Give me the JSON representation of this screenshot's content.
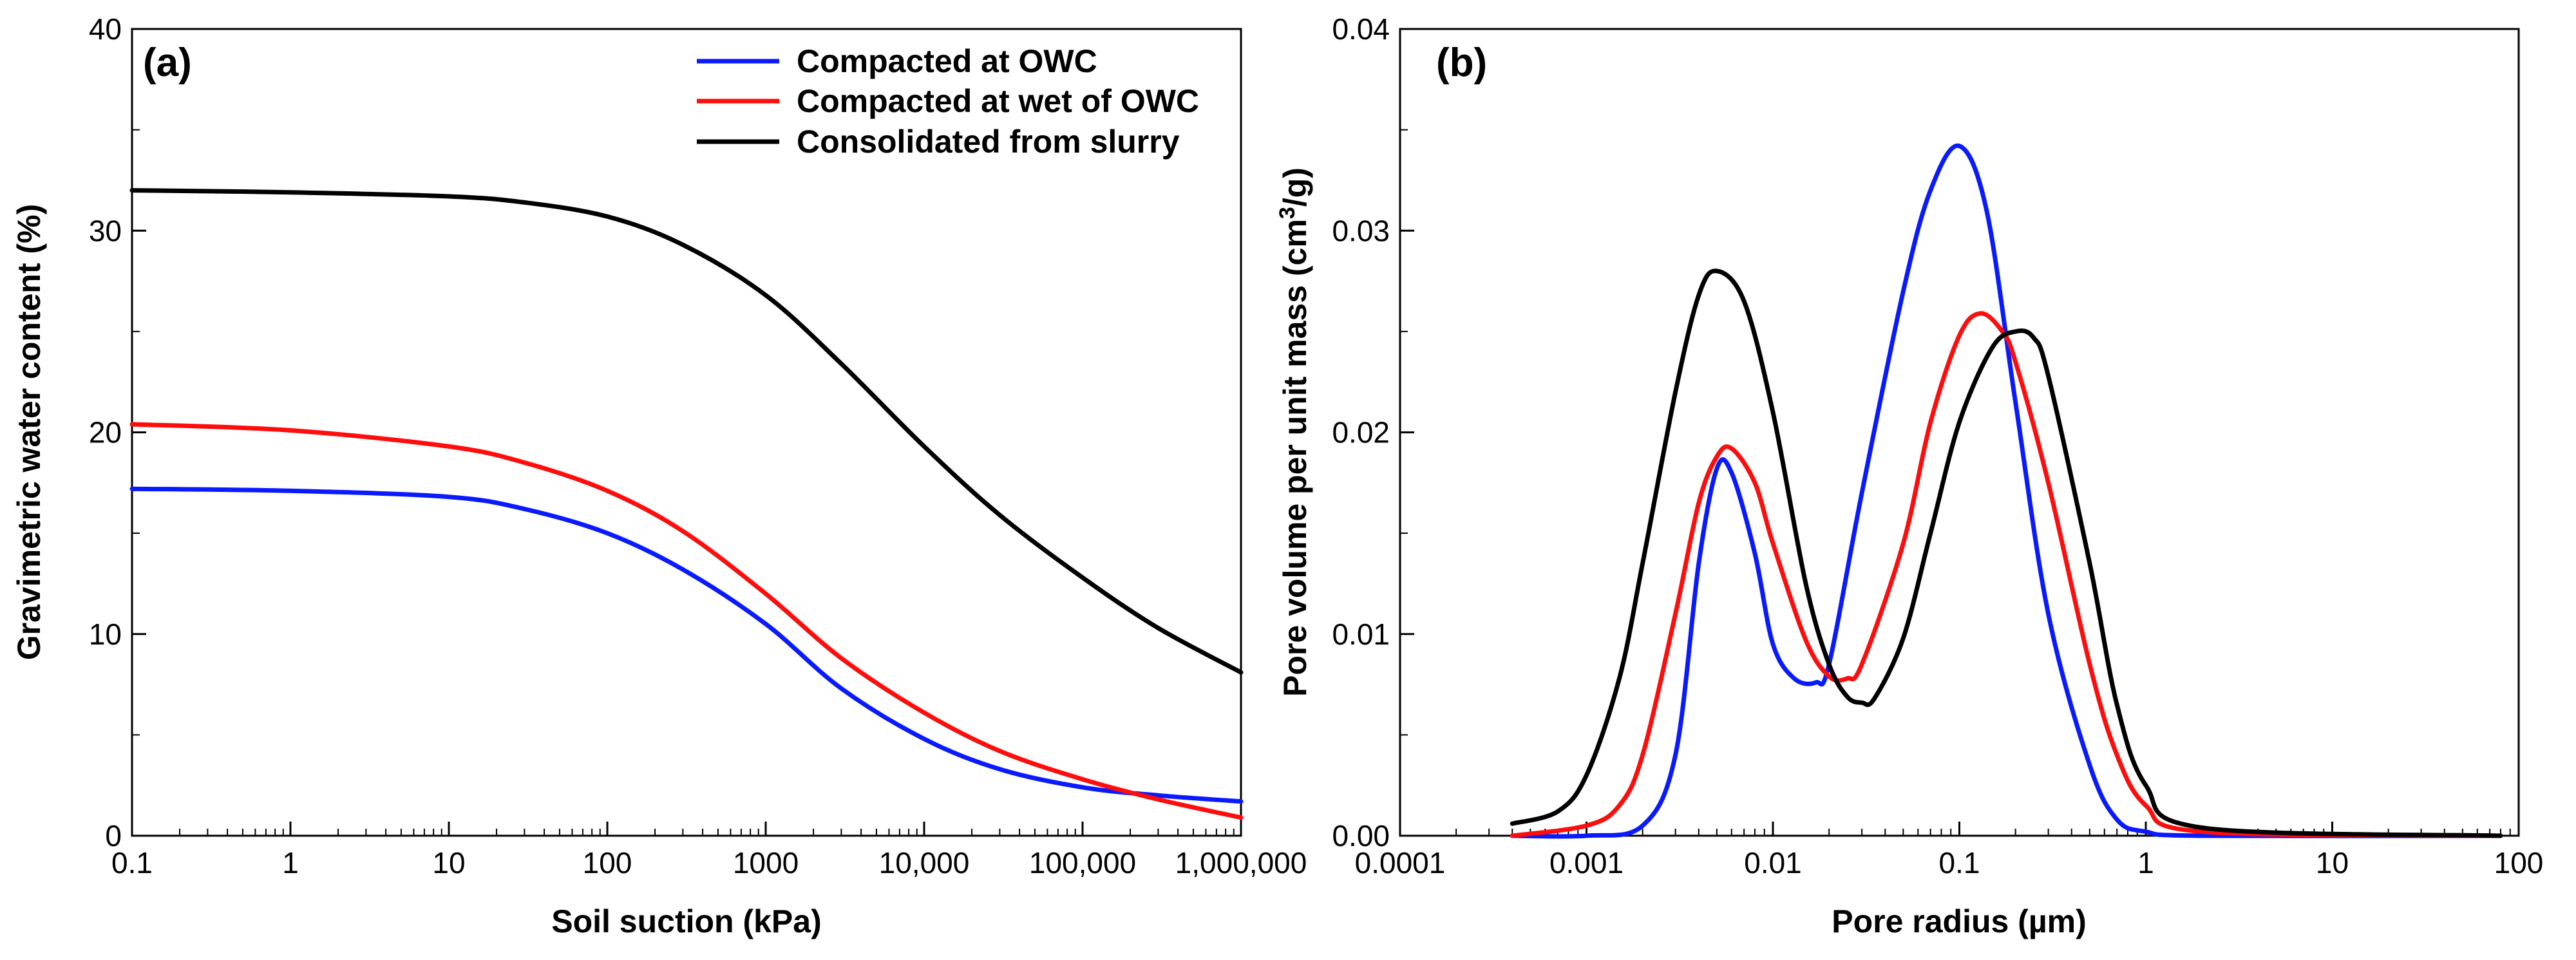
{
  "chart_data": [
    {
      "type": "line",
      "panel_label": "(a)",
      "xlabel": "Soil suction (kPa)",
      "ylabel": "Gravimetric water content (%)",
      "xscale": "log",
      "xlim": [
        0.1,
        1000000
      ],
      "ylim": [
        0,
        40
      ],
      "xticks": [
        {
          "v": 0.1,
          "label": "0.1"
        },
        {
          "v": 1,
          "label": "1"
        },
        {
          "v": 10,
          "label": "10"
        },
        {
          "v": 100,
          "label": "100"
        },
        {
          "v": 1000,
          "label": "1000"
        },
        {
          "v": 10000,
          "label": "10,000"
        },
        {
          "v": 100000,
          "label": "100,000"
        },
        {
          "v": 1000000,
          "label": "1,000,000"
        }
      ],
      "yticks": [
        {
          "v": 0,
          "label": "0"
        },
        {
          "v": 10,
          "label": "10"
        },
        {
          "v": 20,
          "label": "20"
        },
        {
          "v": 30,
          "label": "30"
        },
        {
          "v": 40,
          "label": "40"
        }
      ],
      "legend_position": "top-right",
      "series": [
        {
          "name": "Compacted at OWC",
          "color": "#0a1aff",
          "x": [
            0.1,
            1,
            10,
            30,
            100,
            300,
            1000,
            3000,
            10000,
            30000,
            100000,
            300000,
            1000000
          ],
          "y": [
            17.2,
            17.1,
            16.8,
            16.2,
            15.0,
            13.2,
            10.5,
            7.3,
            4.8,
            3.3,
            2.4,
            2.0,
            1.7
          ]
        },
        {
          "name": "Compacted at wet of OWC",
          "color": "#ff0d0d",
          "x": [
            0.1,
            1,
            10,
            30,
            100,
            300,
            1000,
            3000,
            10000,
            30000,
            100000,
            300000,
            1000000
          ],
          "y": [
            20.4,
            20.1,
            19.3,
            18.5,
            17.1,
            15.1,
            12.0,
            8.8,
            6.1,
            4.2,
            2.8,
            1.8,
            0.9
          ]
        },
        {
          "name": "Consolidated from slurry",
          "color": "#000000",
          "x": [
            0.1,
            1,
            10,
            30,
            100,
            300,
            1000,
            3000,
            10000,
            30000,
            100000,
            300000,
            1000000
          ],
          "y": [
            32.0,
            31.9,
            31.7,
            31.4,
            30.7,
            29.3,
            26.8,
            23.4,
            19.3,
            15.9,
            12.8,
            10.3,
            8.1
          ]
        }
      ]
    },
    {
      "type": "line",
      "panel_label": "(b)",
      "xlabel": "Pore radius (µm)",
      "ylabel_prefix": "Pore volume per unit mass (cm",
      "ylabel_sup": "3",
      "ylabel_suffix": "/g)",
      "xscale": "log",
      "xlim": [
        0.0001,
        100
      ],
      "ylim": [
        0,
        0.04
      ],
      "xticks": [
        {
          "v": 0.0001,
          "label": "0.0001"
        },
        {
          "v": 0.001,
          "label": "0.001"
        },
        {
          "v": 0.01,
          "label": "0.01"
        },
        {
          "v": 0.1,
          "label": "0.1"
        },
        {
          "v": 1,
          "label": "1"
        },
        {
          "v": 10,
          "label": "10"
        },
        {
          "v": 100,
          "label": "100"
        }
      ],
      "yticks": [
        {
          "v": 0,
          "label": "0.00"
        },
        {
          "v": 0.01,
          "label": "0.01"
        },
        {
          "v": 0.02,
          "label": "0.02"
        },
        {
          "v": 0.03,
          "label": "0.03"
        },
        {
          "v": 0.04,
          "label": "0.04"
        }
      ],
      "series": [
        {
          "name": "Compacted at OWC",
          "color": "#0a1aff",
          "x": [
            0.0004,
            0.001,
            0.002,
            0.003,
            0.004,
            0.005,
            0.006,
            0.008,
            0.01,
            0.013,
            0.017,
            0.02,
            0.03,
            0.05,
            0.07,
            0.1,
            0.14,
            0.2,
            0.3,
            0.5,
            0.7,
            1,
            2,
            80
          ],
          "y": [
            0,
            0,
            0.0005,
            0.004,
            0.0135,
            0.0182,
            0.018,
            0.014,
            0.0095,
            0.0078,
            0.0076,
            0.0085,
            0.017,
            0.027,
            0.032,
            0.0342,
            0.031,
            0.0215,
            0.011,
            0.0035,
            0.0008,
            0.0002,
            0,
            0
          ]
        },
        {
          "name": "Compacted at wet of OWC",
          "color": "#ff0d0d",
          "x": [
            0.0004,
            0.001,
            0.0015,
            0.002,
            0.003,
            0.004,
            0.005,
            0.006,
            0.008,
            0.01,
            0.015,
            0.02,
            0.025,
            0.03,
            0.05,
            0.07,
            0.1,
            0.13,
            0.17,
            0.2,
            0.3,
            0.5,
            0.7,
            1,
            2,
            80
          ],
          "y": [
            0,
            0.0005,
            0.0015,
            0.004,
            0.011,
            0.0165,
            0.0188,
            0.0192,
            0.0175,
            0.0145,
            0.0097,
            0.0079,
            0.0078,
            0.0085,
            0.0145,
            0.0205,
            0.0248,
            0.0259,
            0.025,
            0.0235,
            0.0175,
            0.0085,
            0.004,
            0.0015,
            0.0002,
            0
          ]
        },
        {
          "name": "Consolidated from slurry",
          "color": "#000000",
          "x": [
            0.0004,
            0.0007,
            0.001,
            0.0015,
            0.002,
            0.003,
            0.004,
            0.005,
            0.007,
            0.01,
            0.015,
            0.02,
            0.025,
            0.03,
            0.035,
            0.05,
            0.07,
            0.1,
            0.15,
            0.2,
            0.25,
            0.3,
            0.5,
            0.7,
            1,
            2,
            80
          ],
          "y": [
            0.0006,
            0.0012,
            0.003,
            0.0078,
            0.0135,
            0.022,
            0.0268,
            0.028,
            0.0265,
            0.021,
            0.0125,
            0.0085,
            0.0069,
            0.0066,
            0.0068,
            0.0098,
            0.015,
            0.0205,
            0.0242,
            0.025,
            0.0247,
            0.0228,
            0.0135,
            0.0065,
            0.0025,
            0.0004,
            0
          ]
        }
      ]
    }
  ]
}
